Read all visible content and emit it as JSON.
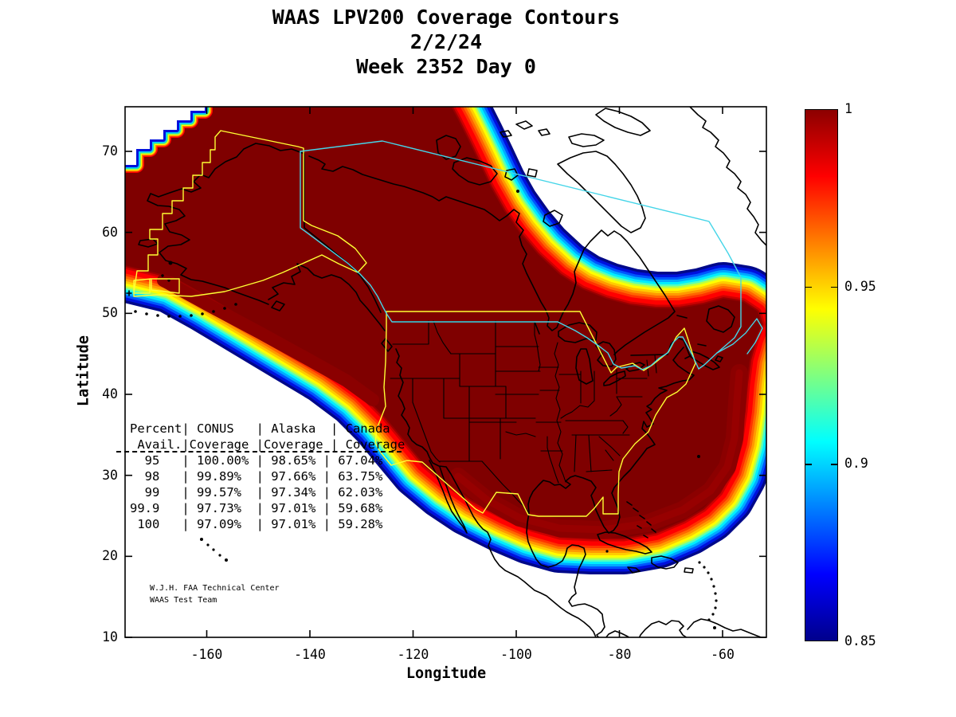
{
  "title": {
    "line1": "WAAS LPV200 Coverage Contours",
    "line2": "2/2/24",
    "line3": "Week 2352 Day 0"
  },
  "axes": {
    "xlabel": "Longitude",
    "ylabel": "Latitude",
    "xticks": [
      -160,
      -140,
      -120,
      -100,
      -80,
      -60
    ],
    "yticks": [
      10,
      20,
      30,
      40,
      50,
      60,
      70
    ]
  },
  "colorbar": {
    "tick_labels": [
      "1",
      "0.95",
      "0.9",
      "0.85"
    ],
    "tick_values": [
      1,
      0.95,
      0.9,
      0.85
    ],
    "min": 0.85,
    "max": 1.0,
    "colormap": "jet",
    "gradient_stops": [
      [
        "#8c0000",
        0
      ],
      [
        "#ff0000",
        12.5
      ],
      [
        "#ffff00",
        37.5
      ],
      [
        "#00ffff",
        62.5
      ],
      [
        "#0000ff",
        87.5
      ],
      [
        "#00008c",
        100
      ]
    ]
  },
  "table": {
    "header_lines": [
      "Percent| CONUS   | Alaska  | Canada",
      " Avail.|Coverage |Coverage | Coverage"
    ],
    "columns": [
      "Percent Avail.",
      "CONUS Coverage",
      "Alaska Coverage",
      "Canada Coverage"
    ],
    "rows": [
      [
        "95",
        "100.00%",
        "98.65%",
        "67.04%"
      ],
      [
        "98",
        "99.89%",
        "97.66%",
        "63.75%"
      ],
      [
        "99",
        "99.57%",
        "97.34%",
        "62.03%"
      ],
      [
        "99.9",
        "97.73%",
        "97.01%",
        "59.68%"
      ],
      [
        "100",
        "97.09%",
        "97.01%",
        "59.28%"
      ]
    ]
  },
  "credit": {
    "line1": "W.J.H. FAA Technical Center",
    "line2": "WAAS Test Team"
  },
  "chart_data": {
    "type": "heatmap",
    "subtype": "geographic-contour-map",
    "title": "WAAS LPV200 Coverage Contours",
    "date": "2/2/24",
    "week": "Week 2352 Day 0",
    "xlabel": "Longitude",
    "ylabel": "Latitude",
    "xlim": [
      -176,
      -51.5
    ],
    "ylim": [
      9.5,
      75.5
    ],
    "contour_levels_range": [
      0.85,
      1.0
    ],
    "colormap": "jet",
    "colorbar_ticks": [
      1,
      0.95,
      0.9,
      0.85
    ],
    "availability_table": {
      "percent_avail": [
        95,
        98,
        99,
        99.9,
        100
      ],
      "conus_coverage": [
        "100.00%",
        "99.89%",
        "99.57%",
        "97.73%",
        "97.09%"
      ],
      "alaska_coverage": [
        "98.65%",
        "97.66%",
        "97.34%",
        "97.01%",
        "97.01%"
      ],
      "canada_coverage": [
        "67.04%",
        "63.75%",
        "62.03%",
        "59.68%",
        "59.28%"
      ]
    },
    "outer_bands": [
      [
        "#000889",
        92
      ],
      [
        "#0011dd",
        85
      ],
      [
        "#0055ff",
        78
      ],
      [
        "#00aaff",
        72
      ],
      [
        "#00eeff",
        66
      ],
      [
        "#55ffbb",
        60
      ],
      [
        "#bbff44",
        55
      ],
      [
        "#ffff00",
        50
      ],
      [
        "#ffcc00",
        44
      ],
      [
        "#ff9900",
        38
      ],
      [
        "#ff6600",
        32
      ],
      [
        "#ff3300",
        26
      ],
      [
        "#ff0000",
        20
      ],
      [
        "#cc0000",
        9
      ],
      [
        "#990000",
        4
      ]
    ],
    "corner_bands": [
      [
        "#ff0000",
        20
      ],
      [
        "#ff8800",
        17
      ],
      [
        "#ffff00",
        14
      ],
      [
        "#55ee77",
        11.5
      ],
      [
        "#00ccff",
        9
      ],
      [
        "#0011dd",
        6
      ]
    ],
    "core_color": "#7f0000",
    "region_outline_colors": {
      "coverage_region": "#ffff33",
      "canada_border": "#45d5e8",
      "coastline": "#000000"
    }
  }
}
